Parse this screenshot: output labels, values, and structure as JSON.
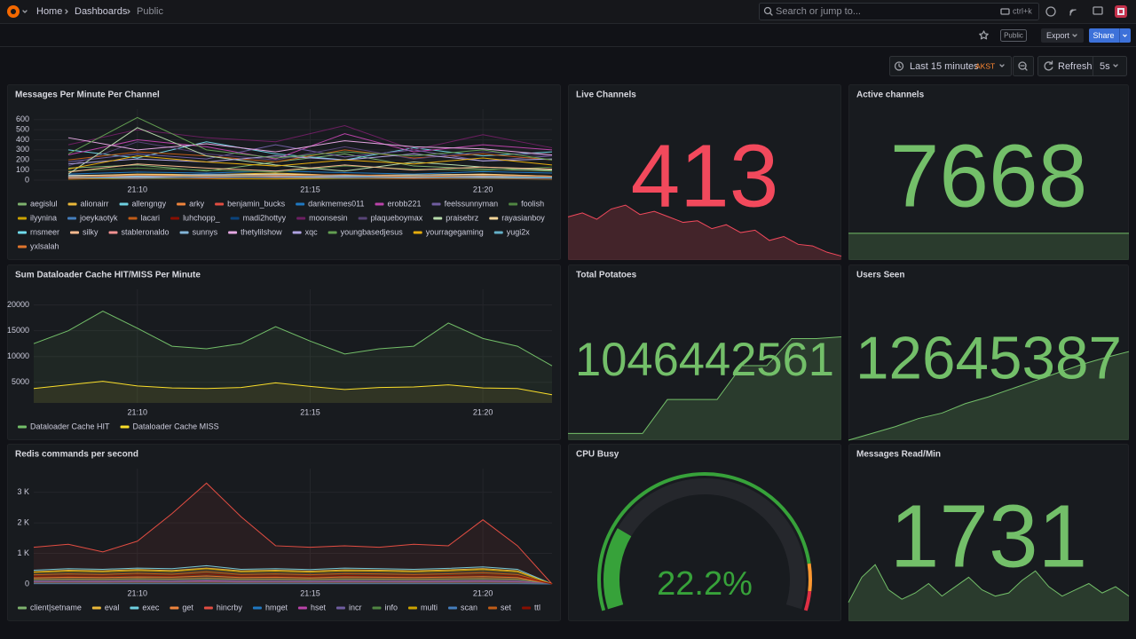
{
  "header": {
    "breadcrumbs": [
      "Home",
      "Dashboards",
      "Public"
    ],
    "search_placeholder": "Search or jump to...",
    "shortcut": "ctrl+k"
  },
  "toolbar": {
    "badge": "Public",
    "export": "Export",
    "share": "Share"
  },
  "time_picker": {
    "range": "Last 15 minutes",
    "timezone": "AKST",
    "refresh": "Refresh",
    "interval": "5s"
  },
  "chart_data": [
    {
      "type": "line",
      "title": "Messages Per Minute Per Channel",
      "fill": false,
      "x": [
        "21:08",
        "21:10",
        "21:12",
        "21:14",
        "21:16",
        "21:18",
        "21:20",
        "21:22"
      ],
      "xlim": [
        "21:07",
        "21:22"
      ],
      "xticks": [
        "21:10",
        "21:15",
        "21:20"
      ],
      "ylim": [
        0,
        650
      ],
      "yticks": [
        0,
        100,
        200,
        300,
        400,
        500,
        600
      ],
      "series": [
        {
          "name": "aegislul",
          "color": "#7EB26D",
          "values": [
            120,
            150,
            90,
            180,
            260,
            140,
            110,
            90
          ]
        },
        {
          "name": "alionairr",
          "color": "#EAB839",
          "values": [
            40,
            60,
            55,
            70,
            45,
            50,
            60,
            40
          ]
        },
        {
          "name": "allengngy",
          "color": "#6ED0E0",
          "values": [
            300,
            220,
            380,
            260,
            200,
            320,
            240,
            280
          ]
        },
        {
          "name": "arky",
          "color": "#EF843C",
          "values": [
            30,
            40,
            35,
            25,
            40,
            30,
            35,
            20
          ]
        },
        {
          "name": "benjamin_bucks",
          "color": "#E24D42",
          "values": [
            20,
            15,
            30,
            25,
            20,
            18,
            22,
            15
          ]
        },
        {
          "name": "dankmemes011",
          "color": "#1F78C1",
          "values": [
            60,
            80,
            70,
            90,
            75,
            60,
            85,
            70
          ]
        },
        {
          "name": "erobb221",
          "color": "#BA43A9",
          "values": [
            250,
            400,
            330,
            210,
            460,
            280,
            350,
            300
          ]
        },
        {
          "name": "feelssunnyman",
          "color": "#705DA0",
          "values": [
            180,
            260,
            210,
            350,
            230,
            300,
            190,
            240
          ]
        },
        {
          "name": "foolish",
          "color": "#508642",
          "values": [
            90,
            120,
            100,
            80,
            140,
            110,
            95,
            130
          ]
        },
        {
          "name": "ilyynina",
          "color": "#CCA300",
          "values": [
            10,
            20,
            15,
            12,
            18,
            14,
            16,
            10
          ]
        },
        {
          "name": "joeykaotyk",
          "color": "#447EBC",
          "values": [
            50,
            45,
            60,
            55,
            40,
            50,
            45,
            35
          ]
        },
        {
          "name": "lacari",
          "color": "#C15C17",
          "values": [
            200,
            280,
            240,
            180,
            300,
            220,
            260,
            200
          ]
        },
        {
          "name": "luhchopp_",
          "color": "#890F02",
          "values": [
            15,
            25,
            20,
            30,
            22,
            18,
            20,
            12
          ]
        },
        {
          "name": "madi2hottyy",
          "color": "#0A437C",
          "values": [
            25,
            30,
            28,
            35,
            30,
            25,
            32,
            20
          ]
        },
        {
          "name": "moonsesin",
          "color": "#6D1F62",
          "values": [
            350,
            500,
            420,
            380,
            540,
            300,
            450,
            320
          ]
        },
        {
          "name": "plaqueboymax",
          "color": "#584477",
          "values": [
            140,
            380,
            260,
            200,
            330,
            210,
            280,
            240
          ]
        },
        {
          "name": "praisebrz",
          "color": "#B7DBAB",
          "values": [
            60,
            520,
            240,
            150,
            90,
            180,
            130,
            100
          ]
        },
        {
          "name": "rayasianboy",
          "color": "#F4D598",
          "values": [
            45,
            55,
            50,
            60,
            48,
            52,
            58,
            40
          ]
        },
        {
          "name": "rnsmeer",
          "color": "#70DBED",
          "values": [
            35,
            40,
            38,
            45,
            42,
            36,
            40,
            30
          ]
        },
        {
          "name": "silky",
          "color": "#F9BA8F",
          "values": [
            80,
            160,
            120,
            90,
            150,
            100,
            130,
            110
          ]
        },
        {
          "name": "stableronaldo",
          "color": "#F29191",
          "values": [
            20,
            30,
            25,
            35,
            28,
            22,
            30,
            18
          ]
        },
        {
          "name": "sunnys",
          "color": "#82B5D8",
          "values": [
            40,
            35,
            45,
            50,
            42,
            38,
            46,
            32
          ]
        },
        {
          "name": "thetylilshow",
          "color": "#E5A8E2",
          "values": [
            420,
            300,
            360,
            280,
            390,
            330,
            310,
            250
          ]
        },
        {
          "name": "xqc",
          "color": "#AEA2E0",
          "values": [
            160,
            210,
            180,
            240,
            200,
            260,
            190,
            210
          ]
        },
        {
          "name": "youngbasedjesus",
          "color": "#629E51",
          "values": [
            260,
            620,
            300,
            220,
            280,
            240,
            300,
            200
          ]
        },
        {
          "name": "yourragegaming",
          "color": "#E5AC0E",
          "values": [
            110,
            240,
            180,
            140,
            200,
            160,
            220,
            150
          ]
        },
        {
          "name": "yugi2x",
          "color": "#64B0C8",
          "values": [
            25,
            20,
            30,
            28,
            24,
            26,
            22,
            18
          ]
        },
        {
          "name": "yxlsalah",
          "color": "#E0752D",
          "values": [
            30,
            50,
            40,
            45,
            55,
            35,
            48,
            38
          ]
        }
      ]
    },
    {
      "type": "stat",
      "title": "Live Channels",
      "value": 413,
      "color": "#F2495C",
      "ylim": [
        400,
        590
      ],
      "sparkline": [
        455,
        460,
        452,
        465,
        470,
        458,
        462,
        455,
        448,
        450,
        440,
        445,
        435,
        438,
        425,
        430,
        420,
        418,
        410,
        405
      ]
    },
    {
      "type": "stat",
      "title": "Active channels",
      "value": 7668,
      "color": "#73BF69",
      "ylim": [
        7600,
        7980
      ],
      "sparkline": [
        7668,
        7668,
        7668,
        7668,
        7668,
        7668,
        7668,
        7668,
        7668,
        7668
      ]
    },
    {
      "type": "line",
      "title": "Sum Dataloader Cache HIT/MISS Per Minute",
      "fill": true,
      "x": [
        "21:07",
        "21:08",
        "21:09",
        "21:10",
        "21:11",
        "21:12",
        "21:13",
        "21:14",
        "21:15",
        "21:16",
        "21:17",
        "21:18",
        "21:19",
        "21:20",
        "21:21",
        "21:22"
      ],
      "xlim": [
        "21:07",
        "21:22"
      ],
      "xticks": [
        "21:10",
        "21:15",
        "21:20"
      ],
      "ylim": [
        1000,
        22000
      ],
      "yticks": [
        5000,
        10000,
        15000,
        20000
      ],
      "series": [
        {
          "name": "Dataloader Cache HIT",
          "color": "#73BF69",
          "values": [
            12500,
            15000,
            18800,
            15500,
            12000,
            11500,
            12500,
            15800,
            13000,
            10500,
            11500,
            12000,
            16500,
            13500,
            12000,
            8200
          ]
        },
        {
          "name": "Dataloader Cache MISS",
          "color": "#FADE2A",
          "values": [
            3800,
            4500,
            5200,
            4300,
            3900,
            3800,
            4000,
            4900,
            4200,
            3600,
            4000,
            4100,
            4500,
            3900,
            3800,
            2600
          ]
        }
      ]
    },
    {
      "type": "stat",
      "title": "Total Potatoes",
      "value": 1046442561,
      "color": "#73BF69",
      "ylim": [
        1046290000,
        1046510000
      ],
      "sparkline": [
        1046300000,
        1046300000,
        1046300000,
        1046300000,
        1046350000,
        1046350000,
        1046350000,
        1046400000,
        1046400000,
        1046440000,
        1046440000,
        1046442561
      ]
    },
    {
      "type": "stat",
      "title": "Users Seen",
      "value": 12645387,
      "color": "#73BF69",
      "ylim": [
        12580000,
        12690000
      ],
      "sparkline": [
        12580000,
        12585000,
        12590000,
        12596000,
        12600000,
        12607000,
        12612000,
        12618000,
        12624000,
        12630000,
        12636000,
        12641000,
        12645387
      ]
    },
    {
      "type": "line",
      "title": "Redis commands per second",
      "fill": true,
      "x": [
        "21:07",
        "21:08",
        "21:09",
        "21:10",
        "21:11",
        "21:12",
        "21:13",
        "21:14",
        "21:15",
        "21:16",
        "21:17",
        "21:18",
        "21:19",
        "21:20",
        "21:21",
        "21:22"
      ],
      "xlim": [
        "21:07",
        "21:22"
      ],
      "xticks": [
        "21:10",
        "21:15",
        "21:20"
      ],
      "ylim": [
        0,
        3600
      ],
      "yticks": [
        0,
        {
          "value": 1000,
          "label": "1 K"
        },
        {
          "value": 2000,
          "label": "2 K"
        },
        {
          "value": 3000,
          "label": "3 K"
        }
      ],
      "series": [
        {
          "name": "client|setname",
          "color": "#7EB26D",
          "values": [
            150,
            160,
            155,
            170,
            160,
            180,
            155,
            160,
            150,
            165,
            160,
            155,
            165,
            175,
            155,
            0
          ]
        },
        {
          "name": "eval",
          "color": "#EAB839",
          "values": [
            400,
            450,
            430,
            470,
            440,
            520,
            430,
            450,
            420,
            460,
            450,
            430,
            460,
            500,
            430,
            0
          ]
        },
        {
          "name": "exec",
          "color": "#6ED0E0",
          "values": [
            450,
            500,
            480,
            520,
            500,
            600,
            480,
            500,
            470,
            520,
            500,
            480,
            510,
            560,
            480,
            0
          ]
        },
        {
          "name": "get",
          "color": "#EF843C",
          "values": [
            200,
            220,
            210,
            230,
            220,
            260,
            210,
            220,
            200,
            230,
            220,
            210,
            225,
            240,
            210,
            0
          ]
        },
        {
          "name": "hincrby",
          "color": "#E24D42",
          "values": [
            1200,
            1300,
            1050,
            1400,
            2300,
            3300,
            2200,
            1250,
            1200,
            1250,
            1200,
            1300,
            1250,
            2100,
            1250,
            0
          ]
        },
        {
          "name": "hmget",
          "color": "#1F78C1",
          "values": [
            100,
            110,
            105,
            115,
            110,
            130,
            105,
            110,
            100,
            115,
            110,
            105,
            112,
            120,
            105,
            0
          ]
        },
        {
          "name": "hset",
          "color": "#BA43A9",
          "values": [
            80,
            85,
            82,
            90,
            85,
            100,
            82,
            85,
            80,
            88,
            85,
            82,
            86,
            95,
            82,
            0
          ]
        },
        {
          "name": "incr",
          "color": "#705DA0",
          "values": [
            60,
            65,
            62,
            68,
            64,
            75,
            62,
            65,
            60,
            66,
            64,
            62,
            65,
            70,
            62,
            0
          ]
        },
        {
          "name": "info",
          "color": "#508642",
          "values": [
            20,
            20,
            20,
            20,
            20,
            20,
            20,
            20,
            20,
            20,
            20,
            20,
            20,
            20,
            20,
            0
          ]
        },
        {
          "name": "multi",
          "color": "#CCA300",
          "values": [
            380,
            420,
            400,
            440,
            410,
            500,
            400,
            420,
            390,
            430,
            420,
            400,
            430,
            470,
            400,
            0
          ]
        },
        {
          "name": "scan",
          "color": "#447EBC",
          "values": [
            10,
            10,
            10,
            10,
            10,
            10,
            10,
            10,
            10,
            10,
            10,
            10,
            10,
            10,
            10,
            0
          ]
        },
        {
          "name": "set",
          "color": "#C15C17",
          "values": [
            300,
            330,
            310,
            350,
            320,
            400,
            310,
            330,
            300,
            340,
            330,
            310,
            335,
            370,
            310,
            0
          ]
        },
        {
          "name": "ttl",
          "color": "#890F02",
          "values": [
            250,
            270,
            260,
            290,
            270,
            330,
            260,
            270,
            250,
            280,
            270,
            260,
            275,
            300,
            260,
            0
          ]
        }
      ]
    },
    {
      "type": "gauge",
      "title": "CPU Busy",
      "value": 22.2,
      "value_label": "22.2%",
      "min": 0,
      "max": 100,
      "thresholds": [
        {
          "value": 0,
          "color": "#37A23A"
        },
        {
          "value": 88,
          "color": "#FF9830"
        },
        {
          "value": 95,
          "color": "#E02F44"
        }
      ]
    },
    {
      "type": "stat",
      "title": "Messages Read/Min",
      "value": 1731,
      "color": "#73BF69",
      "ylim": [
        1200,
        3600
      ],
      "sparkline": [
        1500,
        1900,
        2100,
        1700,
        1550,
        1650,
        1800,
        1600,
        1750,
        1900,
        1700,
        1600,
        1650,
        1850,
        2000,
        1750,
        1600,
        1700,
        1800,
        1650,
        1750,
        1600
      ]
    }
  ]
}
